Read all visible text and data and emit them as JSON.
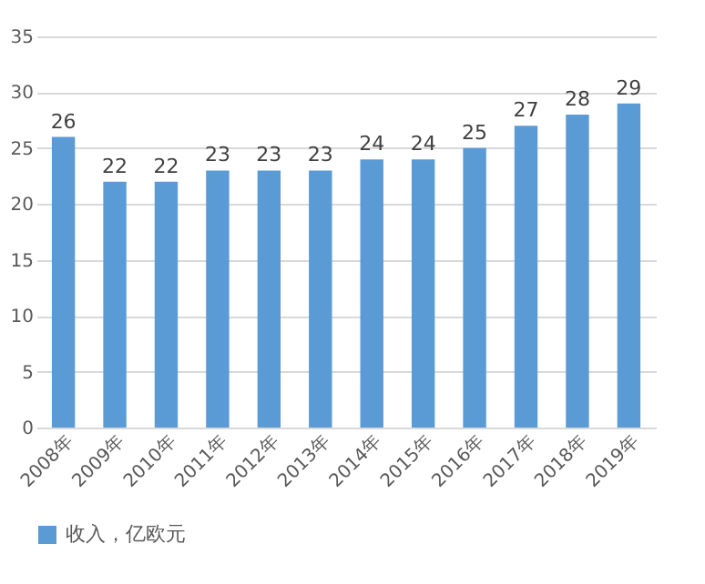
{
  "chart_data": {
    "type": "bar",
    "categories": [
      "2008年",
      "2009年",
      "2010年",
      "2011年",
      "2012年",
      "2013年",
      "2014年",
      "2015年",
      "2016年",
      "2017年",
      "2018年",
      "2019年"
    ],
    "series": [
      {
        "name": "收入，亿欧元",
        "color": "#5b9bd5",
        "values": [
          26,
          22,
          22,
          23,
          23,
          23,
          24,
          24,
          25,
          27,
          28,
          29
        ]
      }
    ],
    "ylim": [
      0,
      35
    ],
    "yticks": [
      0,
      5,
      10,
      15,
      20,
      25,
      30,
      35
    ],
    "grid": "y",
    "legend": "bottom",
    "data_labels": true
  }
}
